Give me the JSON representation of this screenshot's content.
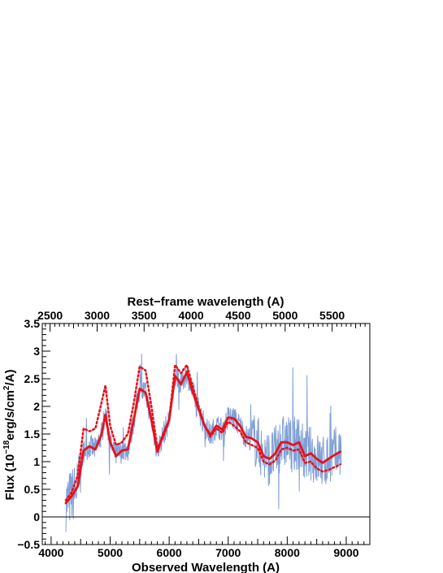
{
  "chart_data": {
    "type": "line",
    "xlabel": "Observed Wavelength (A)",
    "top_xlabel": "Rest−frame wavelength (A)",
    "ylabel": {
      "prefix": "Flux (10",
      "exp1": "−18",
      "mid": "erg/s/cm",
      "exp2": "2",
      "suffix": "/A)"
    },
    "xlim": [
      3850,
      9400
    ],
    "ylim": [
      -0.5,
      3.5
    ],
    "x_ticks": [
      4000,
      5000,
      6000,
      7000,
      8000,
      9000
    ],
    "x_tick_labels": [
      "4000",
      "5000",
      "6000",
      "7000",
      "8000",
      "9000"
    ],
    "y_ticks": [
      -0.5,
      0,
      0.5,
      1,
      1.5,
      2,
      2.5,
      3,
      3.5
    ],
    "y_tick_labels": [
      "−0.5",
      "0",
      "0.5",
      "1",
      "1.5",
      "2",
      "2.5",
      "3",
      "3.5"
    ],
    "top_axis": {
      "redshift_factor": 1.593,
      "ticks": [
        2500,
        3000,
        3500,
        4000,
        4500,
        5000,
        5500
      ],
      "tick_labels": [
        "2500",
        "3000",
        "3500",
        "4000",
        "4500",
        "5000",
        "5500"
      ]
    },
    "zero_line": 0,
    "colors": {
      "observed": "#7f9fd6",
      "model_solid": "#e8101a",
      "model_dotted": "#e8101a",
      "zero_line": "#000000"
    },
    "series": [
      {
        "style": "solid",
        "x": [
          4250,
          4350,
          4450,
          4550,
          4650,
          4750,
          4850,
          4920,
          5000,
          5100,
          5200,
          5300,
          5400,
          5500,
          5600,
          5700,
          5800,
          5900,
          6000,
          6100,
          6200,
          6300,
          6400,
          6500,
          6600,
          6700,
          6800,
          6900,
          7000,
          7100,
          7200,
          7300,
          7400,
          7500,
          7600,
          7700,
          7800,
          7900,
          8000,
          8100,
          8200,
          8300,
          8400,
          8500,
          8600,
          8700,
          8800,
          8900
        ],
        "y": [
          0.25,
          0.38,
          0.55,
          1.2,
          1.28,
          1.22,
          1.48,
          1.85,
          1.35,
          1.1,
          1.2,
          1.22,
          1.75,
          2.32,
          2.25,
          1.75,
          1.18,
          1.5,
          1.75,
          2.55,
          2.4,
          2.62,
          2.25,
          1.95,
          1.65,
          1.48,
          1.65,
          1.58,
          1.8,
          1.78,
          1.65,
          1.45,
          1.42,
          1.35,
          1.1,
          1.05,
          1.15,
          1.35,
          1.35,
          1.3,
          1.35,
          1.1,
          1.15,
          1.05,
          0.98,
          1.05,
          1.12,
          1.18
        ]
      },
      {
        "style": "dotted",
        "x": [
          4250,
          4350,
          4450,
          4550,
          4650,
          4750,
          4850,
          4920,
          5000,
          5100,
          5200,
          5300,
          5400,
          5500,
          5600,
          5700,
          5800,
          5900,
          6000,
          6100,
          6200,
          6300,
          6400,
          6500,
          6600,
          6700,
          6800,
          6900,
          7000,
          7100,
          7200,
          7300,
          7400,
          7500,
          7600,
          7700,
          7800,
          7900,
          8000,
          8100,
          8200,
          8300,
          8400,
          8500,
          8600,
          8700,
          8800,
          8900
        ],
        "y": [
          0.3,
          0.45,
          0.75,
          1.6,
          1.55,
          1.6,
          2.05,
          2.38,
          1.65,
          1.3,
          1.35,
          1.5,
          2.05,
          2.72,
          2.65,
          2.0,
          1.25,
          1.45,
          1.75,
          2.75,
          2.6,
          2.75,
          2.35,
          2.0,
          1.65,
          1.45,
          1.6,
          1.52,
          1.72,
          1.65,
          1.55,
          1.35,
          1.3,
          1.25,
          1.0,
          0.95,
          1.02,
          1.22,
          1.25,
          1.2,
          1.22,
          0.98,
          1.0,
          0.88,
          0.82,
          0.85,
          0.9,
          0.95
        ]
      }
    ]
  }
}
